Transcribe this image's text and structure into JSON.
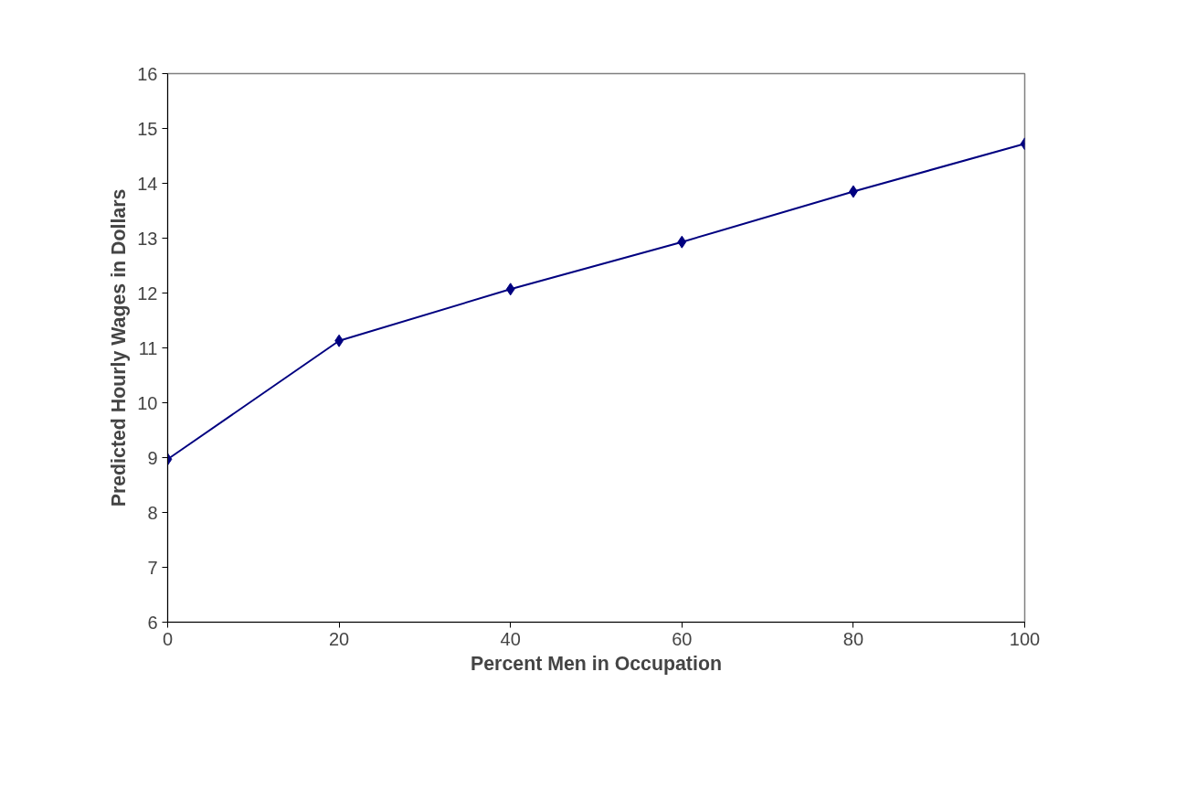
{
  "chart_data": {
    "type": "line",
    "xlabel": "Percent Men in Occupation",
    "ylabel": "Predicted Hourly Wages in Dollars",
    "x": [
      0,
      20,
      40,
      60,
      80,
      100
    ],
    "series": [
      {
        "color": "#000080",
        "values": [
          8.97,
          11.13,
          12.07,
          12.93,
          13.85,
          14.72
        ]
      }
    ],
    "xlim": [
      0,
      100
    ],
    "xticks": [
      0,
      20,
      40,
      60,
      80,
      100
    ],
    "ylim": [
      6,
      16
    ],
    "yticks": [
      6,
      7,
      8,
      9,
      10,
      11,
      12,
      13,
      14,
      15,
      16
    ],
    "marker": "diamond",
    "line_style": "solid",
    "grid": false
  }
}
